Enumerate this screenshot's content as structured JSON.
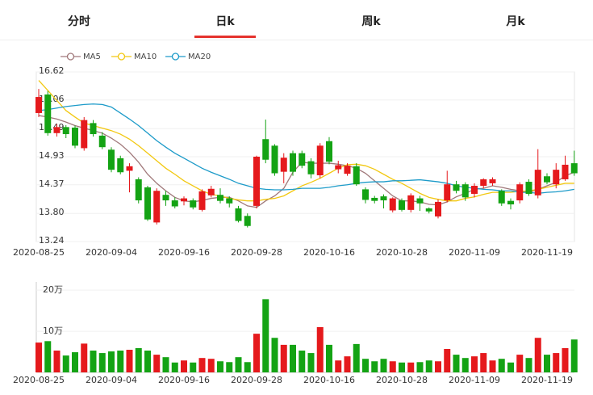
{
  "tabs": [
    "分时",
    "日k",
    "周k",
    "月k"
  ],
  "active_tab": 1,
  "chart_data": [
    {
      "type": "candlestick",
      "categories": [
        "2020-08-25",
        null,
        null,
        null,
        null,
        null,
        null,
        null,
        "2020-09-04",
        null,
        null,
        null,
        null,
        null,
        null,
        null,
        "2020-09-16",
        null,
        null,
        null,
        null,
        null,
        null,
        null,
        "2020-09-28",
        null,
        null,
        null,
        null,
        null,
        null,
        null,
        "2020-10-16",
        null,
        null,
        null,
        null,
        null,
        null,
        null,
        "2020-10-28",
        null,
        null,
        null,
        null,
        null,
        null,
        null,
        "2020-11-09",
        null,
        null,
        null,
        null,
        null,
        null,
        null,
        "2020-11-19",
        null,
        null,
        null
      ],
      "open": [
        15.8,
        16.17,
        15.4,
        15.52,
        15.51,
        15.1,
        15.6,
        15.35,
        15.07,
        14.9,
        14.65,
        14.48,
        14.32,
        13.62,
        14.17,
        14.06,
        14.04,
        14.06,
        13.87,
        14.16,
        14.17,
        14.1,
        13.9,
        13.75,
        13.95,
        15.28,
        15.15,
        14.63,
        15.0,
        15.0,
        14.84,
        14.56,
        15.24,
        14.68,
        14.59,
        14.74,
        14.28,
        14.11,
        14.14,
        13.86,
        14.06,
        13.87,
        14.1,
        13.9,
        13.74,
        14.06,
        14.38,
        14.38,
        14.19,
        14.35,
        14.4,
        14.25,
        14.05,
        14.06,
        14.43,
        14.16,
        14.54,
        14.38,
        14.48,
        14.8
      ],
      "high": [
        16.28,
        16.24,
        15.58,
        15.56,
        15.55,
        15.72,
        15.66,
        15.42,
        15.12,
        14.95,
        14.8,
        14.52,
        14.35,
        14.3,
        14.25,
        14.12,
        14.14,
        14.1,
        14.28,
        14.35,
        14.3,
        14.14,
        13.95,
        13.8,
        14.95,
        15.67,
        15.18,
        15.0,
        15.05,
        15.05,
        14.9,
        15.2,
        15.32,
        14.85,
        14.8,
        14.8,
        14.32,
        14.15,
        14.18,
        14.12,
        14.1,
        14.2,
        14.15,
        13.92,
        14.08,
        14.65,
        14.45,
        14.42,
        14.4,
        14.5,
        14.52,
        14.28,
        14.1,
        14.42,
        14.48,
        15.08,
        14.6,
        14.8,
        14.95,
        15.05
      ],
      "low": [
        15.72,
        15.35,
        15.33,
        15.3,
        15.1,
        15.05,
        15.33,
        15.08,
        14.62,
        14.58,
        14.22,
        14.0,
        13.65,
        13.58,
        13.95,
        13.9,
        13.96,
        13.88,
        13.84,
        14.12,
        14.0,
        13.92,
        13.62,
        13.52,
        13.9,
        14.8,
        14.55,
        14.4,
        14.55,
        14.7,
        14.5,
        14.5,
        14.78,
        14.6,
        14.55,
        14.35,
        14.0,
        14.0,
        13.9,
        13.82,
        13.84,
        13.82,
        13.85,
        13.8,
        13.7,
        14.02,
        14.2,
        14.05,
        14.12,
        14.3,
        14.35,
        13.95,
        13.88,
        14.0,
        14.15,
        14.1,
        14.38,
        14.3,
        14.45,
        14.55
      ],
      "close": [
        16.12,
        15.4,
        15.52,
        15.38,
        15.15,
        15.66,
        15.38,
        15.12,
        14.67,
        14.62,
        14.74,
        14.06,
        13.68,
        14.25,
        14.06,
        13.94,
        14.1,
        13.92,
        14.24,
        14.29,
        14.05,
        14.0,
        13.65,
        13.55,
        14.93,
        14.87,
        14.6,
        14.91,
        14.63,
        14.75,
        14.58,
        15.15,
        14.83,
        14.76,
        14.75,
        14.38,
        14.07,
        14.05,
        14.06,
        14.1,
        13.87,
        14.16,
        14.0,
        13.84,
        14.03,
        14.38,
        14.25,
        14.12,
        14.35,
        14.48,
        14.48,
        14.0,
        13.98,
        14.38,
        14.19,
        14.67,
        14.42,
        14.67,
        14.77,
        14.6
      ],
      "up_color": "#e5191c",
      "down_color": "#14a314",
      "series": [
        {
          "name": "MA5",
          "color": "#a0787a",
          "values": [
            15.75,
            15.72,
            15.68,
            15.62,
            15.55,
            15.5,
            15.45,
            15.4,
            15.3,
            15.18,
            15.02,
            14.82,
            14.58,
            14.4,
            14.25,
            14.12,
            14.05,
            14.03,
            14.06,
            14.1,
            14.12,
            14.12,
            14.05,
            13.95,
            13.92,
            14.05,
            14.15,
            14.3,
            14.62,
            14.82,
            14.8,
            14.8,
            14.8,
            14.78,
            14.75,
            14.7,
            14.6,
            14.45,
            14.3,
            14.15,
            14.05,
            14.05,
            14.03,
            13.98,
            13.97,
            14.03,
            14.13,
            14.2,
            14.28,
            14.3,
            14.35,
            14.32,
            14.28,
            14.25,
            14.22,
            14.28,
            14.35,
            14.42,
            14.55,
            14.62
          ]
        },
        {
          "name": "MA10",
          "color": "#f2c811",
          "values": [
            16.45,
            16.25,
            16.05,
            15.85,
            15.72,
            15.6,
            15.55,
            15.5,
            15.45,
            15.38,
            15.28,
            15.15,
            15.0,
            14.85,
            14.7,
            14.58,
            14.45,
            14.35,
            14.25,
            14.18,
            14.15,
            14.1,
            14.07,
            14.05,
            14.05,
            14.08,
            14.1,
            14.15,
            14.25,
            14.35,
            14.42,
            14.5,
            14.6,
            14.7,
            14.77,
            14.78,
            14.75,
            14.68,
            14.58,
            14.48,
            14.4,
            14.3,
            14.2,
            14.12,
            14.08,
            14.05,
            14.05,
            14.1,
            14.13,
            14.18,
            14.22,
            14.22,
            14.22,
            14.24,
            14.25,
            14.28,
            14.32,
            14.36,
            14.4,
            14.4
          ]
        },
        {
          "name": "MA20",
          "color": "#1d9bc9",
          "values": [
            15.85,
            15.87,
            15.9,
            15.93,
            15.95,
            15.97,
            15.98,
            15.97,
            15.92,
            15.8,
            15.68,
            15.55,
            15.4,
            15.25,
            15.12,
            15.0,
            14.9,
            14.8,
            14.7,
            14.62,
            14.55,
            14.48,
            14.4,
            14.35,
            14.3,
            14.28,
            14.27,
            14.27,
            14.28,
            14.3,
            14.3,
            14.3,
            14.32,
            14.35,
            14.37,
            14.4,
            14.42,
            14.43,
            14.43,
            14.45,
            14.45,
            14.46,
            14.47,
            14.45,
            14.43,
            14.4,
            14.35,
            14.32,
            14.3,
            14.28,
            14.27,
            14.25,
            14.25,
            14.22,
            14.22,
            14.2,
            14.22,
            14.23,
            14.25,
            14.28
          ]
        }
      ],
      "ylim": [
        13.24,
        16.62
      ],
      "yticks": [
        16.62,
        16.06,
        15.49,
        14.93,
        14.37,
        {
          "value": 13.8,
          "label": "13.80"
        },
        13.24
      ],
      "grid": true
    },
    {
      "type": "bar",
      "categories": [
        "2020-08-25",
        null,
        null,
        null,
        null,
        null,
        null,
        null,
        "2020-09-04",
        null,
        null,
        null,
        null,
        null,
        null,
        null,
        "2020-09-16",
        null,
        null,
        null,
        null,
        null,
        null,
        null,
        "2020-09-28",
        null,
        null,
        null,
        null,
        null,
        null,
        null,
        "2020-10-16",
        null,
        null,
        null,
        null,
        null,
        null,
        null,
        "2020-10-28",
        null,
        null,
        null,
        null,
        null,
        null,
        null,
        "2020-11-09",
        null,
        null,
        null,
        null,
        null,
        null,
        null,
        "2020-11-19",
        null,
        null,
        null
      ],
      "values": [
        72500,
        76000,
        53000,
        41000,
        49000,
        70000,
        53000,
        47000,
        51000,
        53000,
        55000,
        59000,
        53000,
        43000,
        37000,
        24000,
        29000,
        24000,
        35000,
        33000,
        27000,
        25000,
        37000,
        25000,
        94000,
        178000,
        84000,
        67000,
        67000,
        53000,
        47000,
        110000,
        67000,
        29000,
        39000,
        69000,
        33000,
        27000,
        33000,
        27000,
        24000,
        24000,
        25000,
        29000,
        27000,
        57000,
        43000,
        35000,
        39000,
        47000,
        29000,
        33000,
        24000,
        43000,
        35000,
        84000,
        43000,
        47000,
        59000,
        80000
      ],
      "ylim": [
        0,
        220000
      ],
      "yticks": [
        {
          "value": 200000,
          "label": "20万"
        },
        {
          "value": 100000,
          "label": "10万"
        }
      ],
      "grid": true
    }
  ]
}
